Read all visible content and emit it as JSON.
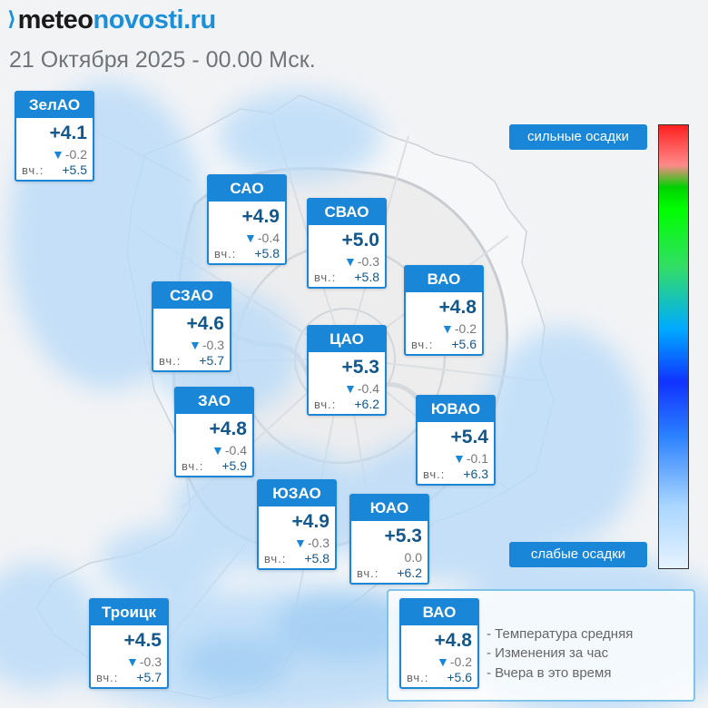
{
  "header": {
    "logo_part1": "meteo",
    "logo_part2": "novosti.ru",
    "subtitle": "21 Октября 2025 - 00.00 Мск."
  },
  "districts": [
    {
      "name": "ЗелАО",
      "temp": "+4.1",
      "change": "-0.2",
      "change_dir": "down",
      "yesterday_label": "вч.:",
      "yesterday": "+5.5"
    },
    {
      "name": "САО",
      "temp": "+4.9",
      "change": "-0.4",
      "change_dir": "down",
      "yesterday_label": "вч.:",
      "yesterday": "+5.8"
    },
    {
      "name": "СВАО",
      "temp": "+5.0",
      "change": "-0.3",
      "change_dir": "down",
      "yesterday_label": "вч.:",
      "yesterday": "+5.8"
    },
    {
      "name": "ВАО",
      "temp": "+4.8",
      "change": "-0.2",
      "change_dir": "down",
      "yesterday_label": "вч.:",
      "yesterday": "+5.6"
    },
    {
      "name": "СЗАО",
      "temp": "+4.6",
      "change": "-0.3",
      "change_dir": "down",
      "yesterday_label": "вч.:",
      "yesterday": "+5.7"
    },
    {
      "name": "ЦАО",
      "temp": "+5.3",
      "change": "-0.4",
      "change_dir": "down",
      "yesterday_label": "вч.:",
      "yesterday": "+6.2"
    },
    {
      "name": "ЗАО",
      "temp": "+4.8",
      "change": "-0.4",
      "change_dir": "down",
      "yesterday_label": "вч.:",
      "yesterday": "+5.9"
    },
    {
      "name": "ЮВАО",
      "temp": "+5.4",
      "change": "-0.1",
      "change_dir": "down",
      "yesterday_label": "вч.:",
      "yesterday": "+6.3"
    },
    {
      "name": "ЮЗАО",
      "temp": "+4.9",
      "change": "-0.3",
      "change_dir": "down",
      "yesterday_label": "вч.:",
      "yesterday": "+5.8"
    },
    {
      "name": "ЮАО",
      "temp": "+5.3",
      "change": "0.0",
      "change_dir": "none",
      "yesterday_label": "вч.:",
      "yesterday": "+6.2"
    },
    {
      "name": "Троицк",
      "temp": "+4.5",
      "change": "-0.3",
      "change_dir": "down",
      "yesterday_label": "вч.:",
      "yesterday": "+5.7"
    }
  ],
  "legend": {
    "sample": {
      "name": "ВАО",
      "temp": "+4.8",
      "change": "-0.2",
      "change_dir": "down",
      "yesterday_label": "вч.:",
      "yesterday": "+5.6"
    },
    "line1": "- Температура средняя",
    "line2": "- Изменения за час",
    "line3": "- Вчера в это время"
  },
  "precip": {
    "strong_label": "сильные осадки",
    "weak_label": "слабые осадки"
  },
  "colors": {
    "accent": "#1a86d8",
    "temp_text": "#14578a",
    "logo_dark": "#1a1a1a"
  }
}
